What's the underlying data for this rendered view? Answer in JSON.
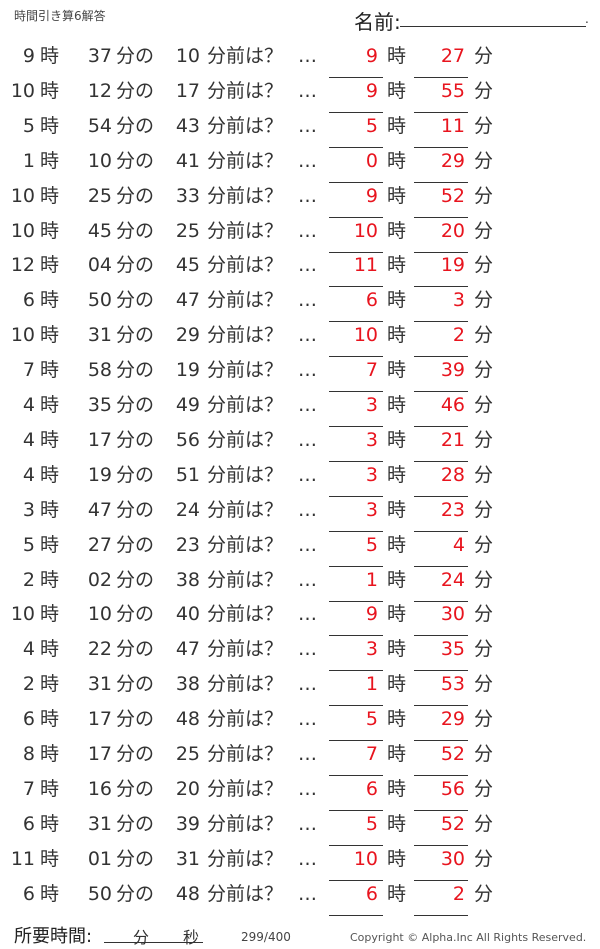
{
  "header": {
    "title": "時間引き算6解答",
    "name_label": "名前:",
    "name_end": "."
  },
  "labels": {
    "hour": "時",
    "min_no": "分の",
    "question": "分前は？",
    "ellipsis": "…",
    "min": "分"
  },
  "answer_color": "#e8141e",
  "rows": [
    {
      "h": "9",
      "m": "37",
      "sub": "10",
      "ah": "9",
      "am": "27"
    },
    {
      "h": "10",
      "m": "12",
      "sub": "17",
      "ah": "9",
      "am": "55"
    },
    {
      "h": "5",
      "m": "54",
      "sub": "43",
      "ah": "5",
      "am": "11"
    },
    {
      "h": "1",
      "m": "10",
      "sub": "41",
      "ah": "0",
      "am": "29"
    },
    {
      "h": "10",
      "m": "25",
      "sub": "33",
      "ah": "9",
      "am": "52"
    },
    {
      "h": "10",
      "m": "45",
      "sub": "25",
      "ah": "10",
      "am": "20"
    },
    {
      "h": "12",
      "m": "04",
      "sub": "45",
      "ah": "11",
      "am": "19"
    },
    {
      "h": "6",
      "m": "50",
      "sub": "47",
      "ah": "6",
      "am": "3"
    },
    {
      "h": "10",
      "m": "31",
      "sub": "29",
      "ah": "10",
      "am": "2"
    },
    {
      "h": "7",
      "m": "58",
      "sub": "19",
      "ah": "7",
      "am": "39"
    },
    {
      "h": "4",
      "m": "35",
      "sub": "49",
      "ah": "3",
      "am": "46"
    },
    {
      "h": "4",
      "m": "17",
      "sub": "56",
      "ah": "3",
      "am": "21"
    },
    {
      "h": "4",
      "m": "19",
      "sub": "51",
      "ah": "3",
      "am": "28"
    },
    {
      "h": "3",
      "m": "47",
      "sub": "24",
      "ah": "3",
      "am": "23"
    },
    {
      "h": "5",
      "m": "27",
      "sub": "23",
      "ah": "5",
      "am": "4"
    },
    {
      "h": "2",
      "m": "02",
      "sub": "38",
      "ah": "1",
      "am": "24"
    },
    {
      "h": "10",
      "m": "10",
      "sub": "40",
      "ah": "9",
      "am": "30"
    },
    {
      "h": "4",
      "m": "22",
      "sub": "47",
      "ah": "3",
      "am": "35"
    },
    {
      "h": "2",
      "m": "31",
      "sub": "38",
      "ah": "1",
      "am": "53"
    },
    {
      "h": "6",
      "m": "17",
      "sub": "48",
      "ah": "5",
      "am": "29"
    },
    {
      "h": "8",
      "m": "17",
      "sub": "25",
      "ah": "7",
      "am": "52"
    },
    {
      "h": "7",
      "m": "16",
      "sub": "20",
      "ah": "6",
      "am": "56"
    },
    {
      "h": "6",
      "m": "31",
      "sub": "39",
      "ah": "5",
      "am": "52"
    },
    {
      "h": "11",
      "m": "01",
      "sub": "31",
      "ah": "10",
      "am": "30"
    },
    {
      "h": "6",
      "m": "50",
      "sub": "48",
      "ah": "6",
      "am": "2"
    }
  ],
  "footer": {
    "time_label": "所要時間:",
    "min": "分",
    "sec": "秒",
    "page": "299/400",
    "copyright": "Copyright ©  Alpha.Inc All Rights Reserved."
  }
}
